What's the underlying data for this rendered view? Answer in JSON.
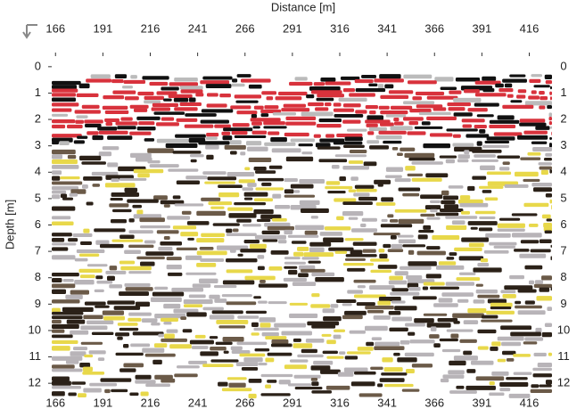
{
  "chart_data": {
    "type": "radargram",
    "x_label": "Distance [m]",
    "y_label": "Depth [m]",
    "xlim": [
      164,
      428
    ],
    "xticks": [
      166,
      191,
      216,
      241,
      266,
      291,
      316,
      341,
      366,
      391,
      416
    ],
    "ylim": [
      -0.4,
      12.4
    ],
    "yticks": [
      0,
      1,
      2,
      3,
      4,
      5,
      6,
      7,
      8,
      9,
      10,
      11,
      12
    ],
    "y_inverted": true
  }
}
